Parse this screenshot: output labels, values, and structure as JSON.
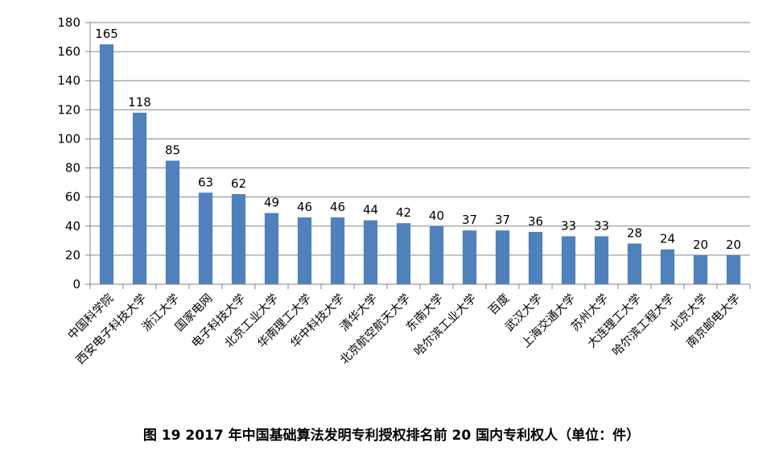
{
  "chart_data": {
    "type": "bar",
    "title": "",
    "xlabel": "",
    "ylabel": "",
    "ylim": [
      0,
      180
    ],
    "yticks": [
      0,
      20,
      40,
      60,
      80,
      100,
      120,
      140,
      160,
      180
    ],
    "grid": true,
    "bar_color": "#4f81bd",
    "categories": [
      "中国科学院",
      "西安电子科技大学",
      "浙江大学",
      "国家电网",
      "电子科技大学",
      "北京工业大学",
      "华南理工大学",
      "华中科技大学",
      "清华大学",
      "北京航空航天大学",
      "东南大学",
      "哈尔滨工业大学",
      "百度",
      "武汉大学",
      "上海交通大学",
      "苏州大学",
      "大连理工大学",
      "哈尔滨工程大学",
      "北京大学",
      "南京邮电大学"
    ],
    "values": [
      165,
      118,
      85,
      63,
      62,
      49,
      46,
      46,
      44,
      42,
      40,
      37,
      37,
      36,
      33,
      33,
      28,
      24,
      20,
      20
    ]
  },
  "caption": "图 19  2017 年中国基础算法发明专利授权排名前 20 国内专利权人（单位：件）"
}
